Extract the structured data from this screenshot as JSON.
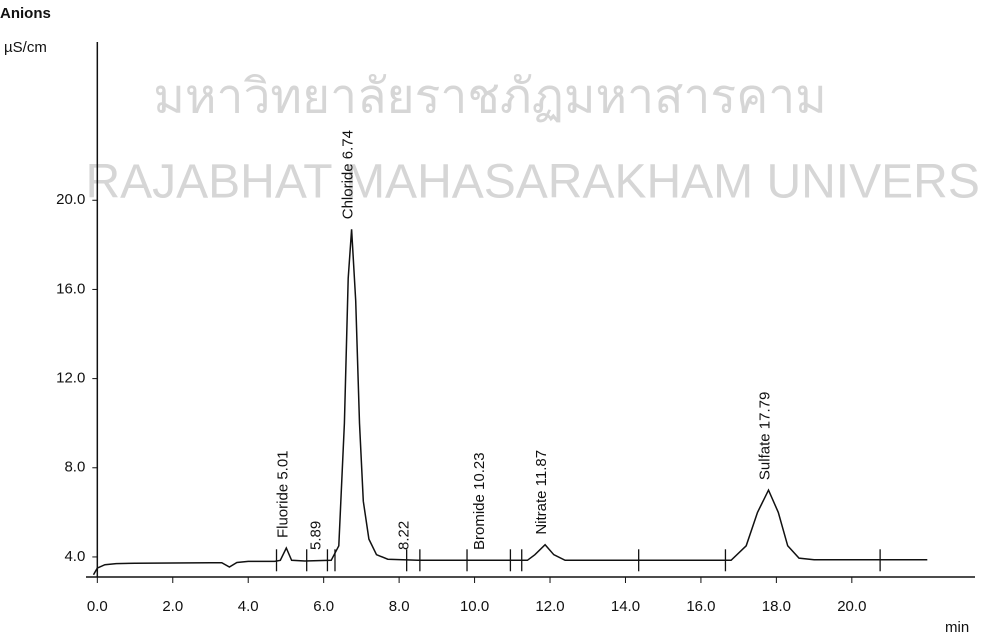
{
  "watermark": [
    "มหาวิทยาลัยราชภัฏมหาสารคาม",
    "RAJABHAT MAHASARAKHAM UNIVERSITY"
  ],
  "chart_data": {
    "type": "line",
    "title": "Anions",
    "y_label": "µS/cm",
    "x_label": "min",
    "color": "#111111",
    "x": [
      -0.1,
      0.0,
      0.2,
      0.5,
      1.0,
      2.0,
      3.0,
      3.3,
      3.5,
      3.7,
      4.0,
      4.7,
      4.85,
      5.01,
      5.15,
      5.5,
      6.2,
      6.4,
      6.55,
      6.65,
      6.74,
      6.85,
      6.95,
      7.05,
      7.2,
      7.4,
      7.7,
      8.5,
      11.4,
      11.6,
      11.87,
      12.1,
      12.4,
      16.8,
      17.2,
      17.5,
      17.79,
      18.05,
      18.3,
      18.6,
      19.0,
      22.0
    ],
    "values": [
      3.2,
      3.5,
      3.65,
      3.7,
      3.72,
      3.73,
      3.74,
      3.74,
      3.55,
      3.75,
      3.8,
      3.8,
      3.85,
      4.4,
      3.85,
      3.82,
      3.85,
      4.5,
      10.0,
      16.5,
      18.7,
      15.5,
      10.0,
      6.5,
      4.8,
      4.1,
      3.9,
      3.85,
      3.85,
      4.1,
      4.55,
      4.1,
      3.85,
      3.85,
      4.5,
      6.0,
      7.0,
      6.0,
      4.5,
      3.95,
      3.87,
      3.87
    ],
    "integration_marks": [
      4.75,
      5.55,
      6.1,
      6.3,
      8.2,
      8.55,
      9.8,
      10.95,
      11.25,
      14.35,
      16.65,
      20.75
    ],
    "annotations": [
      {
        "x": 5.01,
        "label": "Fluoride 5.01"
      },
      {
        "x": 5.89,
        "label": "5.89"
      },
      {
        "x": 6.74,
        "label": "Chloride 6.74"
      },
      {
        "x": 8.22,
        "label": "8.22"
      },
      {
        "x": 10.23,
        "label": "Bromide 10.23"
      },
      {
        "x": 11.87,
        "label": "Nitrate 11.87"
      },
      {
        "x": 17.79,
        "label": "Sulfate 17.79"
      }
    ],
    "xlim": [
      -0.3,
      23
    ],
    "ylim": [
      3.1,
      27.1
    ],
    "xticks": [
      {
        "value": 0,
        "label": "0.0"
      },
      {
        "value": 2,
        "label": "2.0"
      },
      {
        "value": 4,
        "label": "4.0"
      },
      {
        "value": 6,
        "label": "6.0"
      },
      {
        "value": 8,
        "label": "8.0"
      },
      {
        "value": 10,
        "label": "10.0"
      },
      {
        "value": 12,
        "label": "12.0"
      },
      {
        "value": 14,
        "label": "14.0"
      },
      {
        "value": 16,
        "label": "16.0"
      },
      {
        "value": 18,
        "label": "18.0"
      },
      {
        "value": 20,
        "label": "20.0"
      }
    ],
    "yticks": [
      {
        "value": 4,
        "label": "4.0"
      },
      {
        "value": 8,
        "label": "8.0"
      },
      {
        "value": 12,
        "label": "12.0"
      },
      {
        "value": 16,
        "label": "16.0"
      },
      {
        "value": 20,
        "label": "20.0"
      }
    ]
  }
}
